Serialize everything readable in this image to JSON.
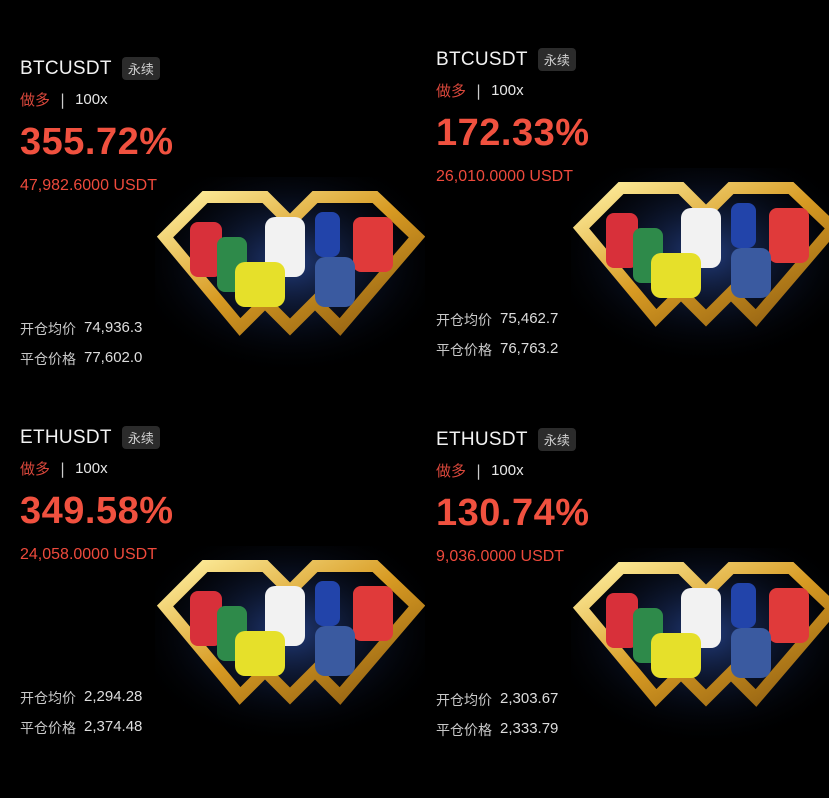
{
  "colors": {
    "profit_red": "#f0513f",
    "long_red": "#d9473b",
    "background": "#000000",
    "gold": "#e8b93a"
  },
  "labels": {
    "open_price": "开仓均价",
    "close_price": "平仓价格",
    "separator": "|"
  },
  "cards": [
    {
      "symbol": "BTCUSDT",
      "tag": "永续",
      "side": "做多",
      "leverage": "100x",
      "pnl_percent": "355.72%",
      "pnl_amount": "47,982.6000 USDT",
      "open_price": "74,936.3",
      "close_price": "77,602.0"
    },
    {
      "symbol": "BTCUSDT",
      "tag": "永续",
      "side": "做多",
      "leverage": "100x",
      "pnl_percent": "172.33%",
      "pnl_amount": "26,010.0000 USDT",
      "open_price": "75,462.7",
      "close_price": "76,763.2"
    },
    {
      "symbol": "ETHUSDT",
      "tag": "永续",
      "side": "做多",
      "leverage": "100x",
      "pnl_percent": "349.58%",
      "pnl_amount": "24,058.0000 USDT",
      "open_price": "2,294.28",
      "close_price": "2,374.48"
    },
    {
      "symbol": "ETHUSDT",
      "tag": "永续",
      "side": "做多",
      "leverage": "100x",
      "pnl_percent": "130.74%",
      "pnl_amount": "9,036.0000 USDT",
      "open_price": "2,303.67",
      "close_price": "2,333.79"
    }
  ]
}
